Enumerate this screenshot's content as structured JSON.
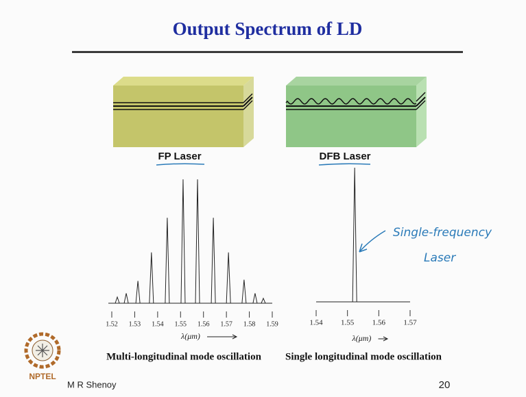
{
  "header": {
    "title": "Output Spectrum of LD"
  },
  "panels": [
    {
      "label": "FP Laser",
      "spectrum": {
        "xlim": [
          1.52,
          1.59
        ],
        "xticks": [
          1.52,
          1.53,
          1.54,
          1.55,
          1.56,
          1.57,
          1.58,
          1.59
        ],
        "x_label": "λ(μm)",
        "peaks": {
          "x": [
            1.5224,
            1.5263,
            1.5314,
            1.5373,
            1.5442,
            1.5511,
            1.5574,
            1.5643,
            1.5709,
            1.5777,
            1.5825,
            1.5861
          ],
          "heights": [
            0.05,
            0.08,
            0.18,
            0.41,
            0.69,
            1.0,
            1.0,
            0.69,
            0.41,
            0.19,
            0.08,
            0.04
          ]
        }
      },
      "caption": "Multi-longitudinal mode oscillation"
    },
    {
      "label": "DFB Laser",
      "spectrum": {
        "xlim": [
          1.54,
          1.57
        ],
        "xticks": [
          1.54,
          1.55,
          1.56,
          1.57
        ],
        "x_label": "λ(μm)",
        "peaks": {
          "x": [
            1.5523
          ],
          "heights": [
            1.0
          ]
        }
      },
      "caption": "Single longitudinal mode oscillation"
    }
  ],
  "annotation": {
    "lines": [
      "Single-frequency",
      "Laser"
    ]
  },
  "footer": {
    "logo": "NPTEL",
    "author": "M R Shenoy",
    "page": "20"
  }
}
